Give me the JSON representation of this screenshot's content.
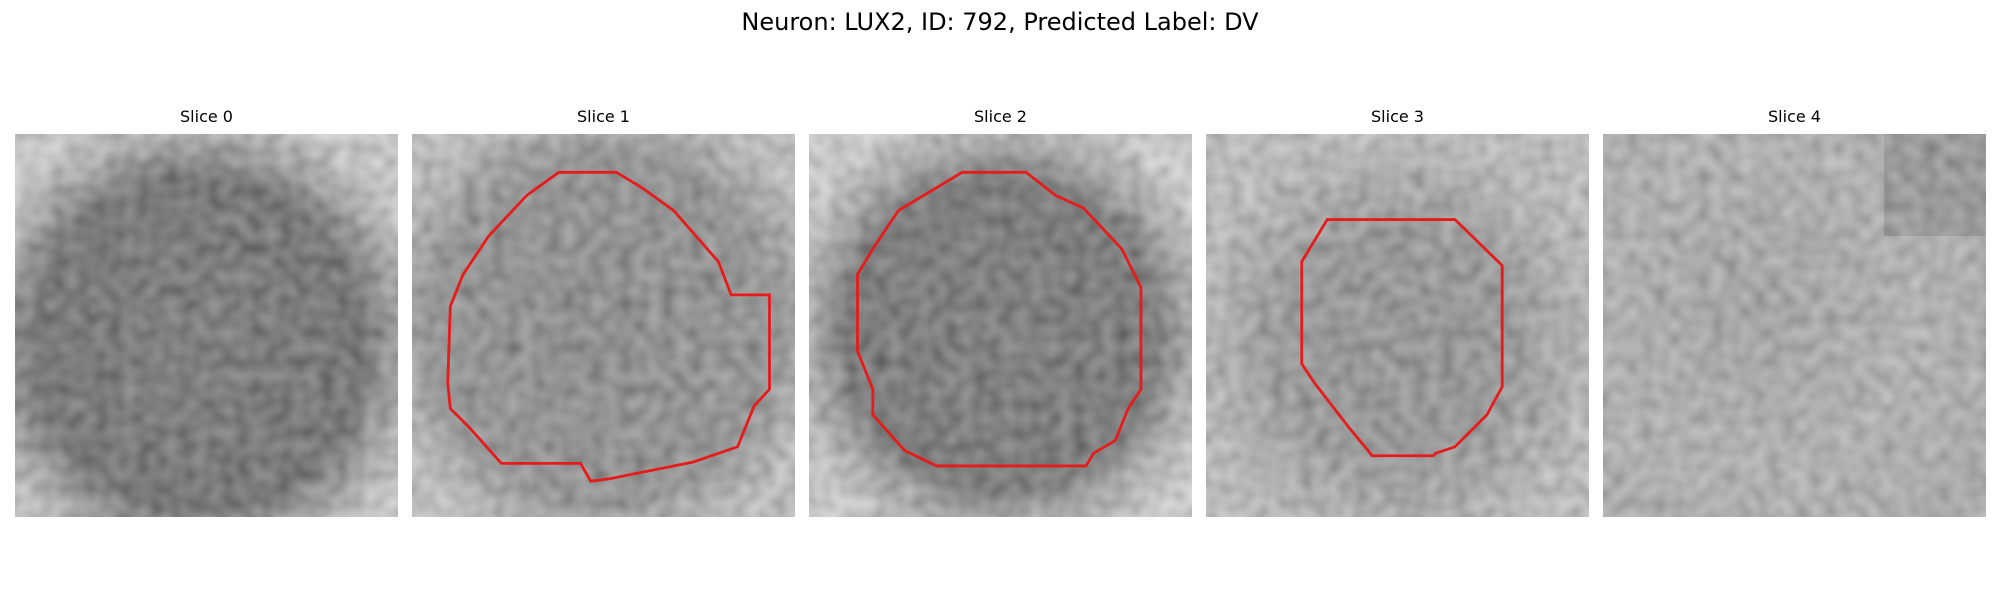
{
  "title": "Neuron: LUX2, ID: 792, Predicted Label: DV",
  "panels": [
    {
      "label": "Slice 0",
      "has_contour": false
    },
    {
      "label": "Slice 1",
      "has_contour": true
    },
    {
      "label": "Slice 2",
      "has_contour": true
    },
    {
      "label": "Slice 3",
      "has_contour": true
    },
    {
      "label": "Slice 4",
      "has_contour": false
    }
  ],
  "colors": {
    "contour": "#e61b1b",
    "background": "#ffffff"
  },
  "colormap": "grayscale"
}
